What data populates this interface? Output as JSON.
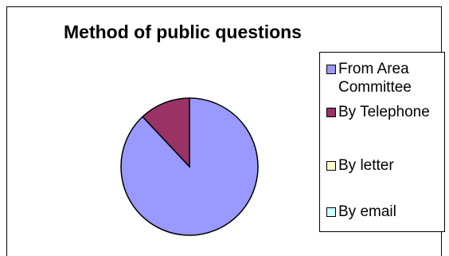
{
  "chart_data": {
    "type": "pie",
    "title": "Method of public questions",
    "categories": [
      "From Area Committee",
      "By Telephone",
      "By letter",
      "By email"
    ],
    "values": [
      88,
      12,
      0,
      0
    ],
    "colors": [
      "#9999ff",
      "#993366",
      "#ffffcc",
      "#ccffff"
    ],
    "legend_position": "right",
    "start_angle_deg": 0,
    "direction": "clockwise"
  }
}
